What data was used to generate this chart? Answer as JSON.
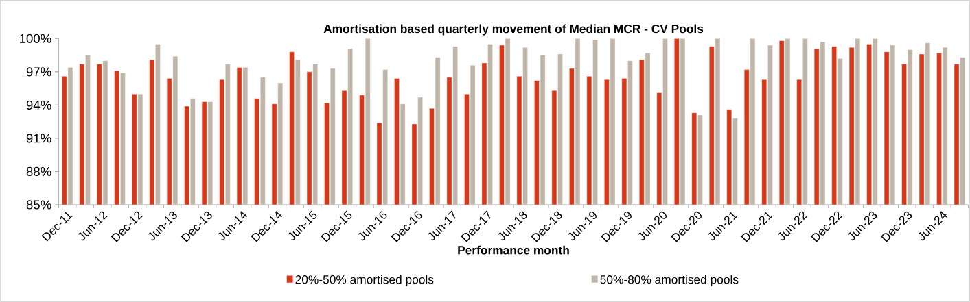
{
  "chart_data": {
    "type": "bar",
    "title": "Amortisation based quarterly movement of Median MCR - CV Pools",
    "xlabel": "Performance month",
    "categories": [
      "Dec-11",
      null,
      "Jun-12",
      null,
      "Dec-12",
      null,
      "Jun-13",
      null,
      "Dec-13",
      null,
      "Jun-14",
      null,
      "Dec-14",
      null,
      "Jun-15",
      null,
      "Dec-15",
      null,
      "Jun-16",
      null,
      "Dec-16",
      null,
      "Jun-17",
      null,
      "Dec-17",
      null,
      "Jun-18",
      null,
      "Dec-18",
      null,
      "Jun-19",
      null,
      "Dec-19",
      null,
      "Jun-20",
      null,
      "Dec-20",
      null,
      "Jun-21",
      null,
      "Dec-21",
      null,
      "Jun-22",
      null,
      "Dec-22",
      null,
      "Jun-23",
      null,
      "Dec-23",
      null,
      "Jun-24",
      null
    ],
    "series": [
      {
        "name": "20%-50% amortised pools",
        "color": "#d6391a",
        "values": [
          96.6,
          97.7,
          97.7,
          97.1,
          95.0,
          98.1,
          96.4,
          93.9,
          94.3,
          96.3,
          97.4,
          94.6,
          94.1,
          98.8,
          97.0,
          94.2,
          95.3,
          94.9,
          92.4,
          96.4,
          92.3,
          93.7,
          96.5,
          95.0,
          97.8,
          99.4,
          96.6,
          96.2,
          95.3,
          97.3,
          96.6,
          96.3,
          96.4,
          98.1,
          95.1,
          100,
          93.3,
          99.3,
          93.6,
          97.2,
          96.3,
          99.8,
          96.3,
          99.1,
          99.3,
          99.2,
          99.5,
          98.8,
          97.7,
          98.6,
          98.7,
          97.7
        ]
      },
      {
        "name": "50%-80% amortised pools",
        "color": "#bfb5a8",
        "values": [
          97.4,
          98.5,
          98.0,
          96.9,
          95.0,
          99.5,
          98.4,
          94.6,
          94.3,
          97.7,
          97.4,
          96.5,
          96.0,
          98.1,
          97.7,
          97.3,
          99.1,
          100,
          97.2,
          94.1,
          94.7,
          98.3,
          99.3,
          97.6,
          99.5,
          100,
          99.2,
          98.5,
          98.6,
          100,
          99.9,
          100,
          98.0,
          98.7,
          100,
          100,
          93.1,
          100,
          92.8,
          100,
          99.4,
          100,
          100,
          99.7,
          98.2,
          100,
          100,
          99.4,
          99.0,
          99.6,
          99.2,
          98.3
        ]
      }
    ],
    "ylim": [
      85,
      100
    ],
    "yticks": [
      {
        "value": 85,
        "label": "85%"
      },
      {
        "value": 88,
        "label": "88%"
      },
      {
        "value": 91,
        "label": "91%"
      },
      {
        "value": 94,
        "label": "94%"
      },
      {
        "value": 97,
        "label": "97%"
      },
      {
        "value": 100,
        "label": "100%"
      }
    ],
    "grid": false,
    "legend": "bottom"
  }
}
